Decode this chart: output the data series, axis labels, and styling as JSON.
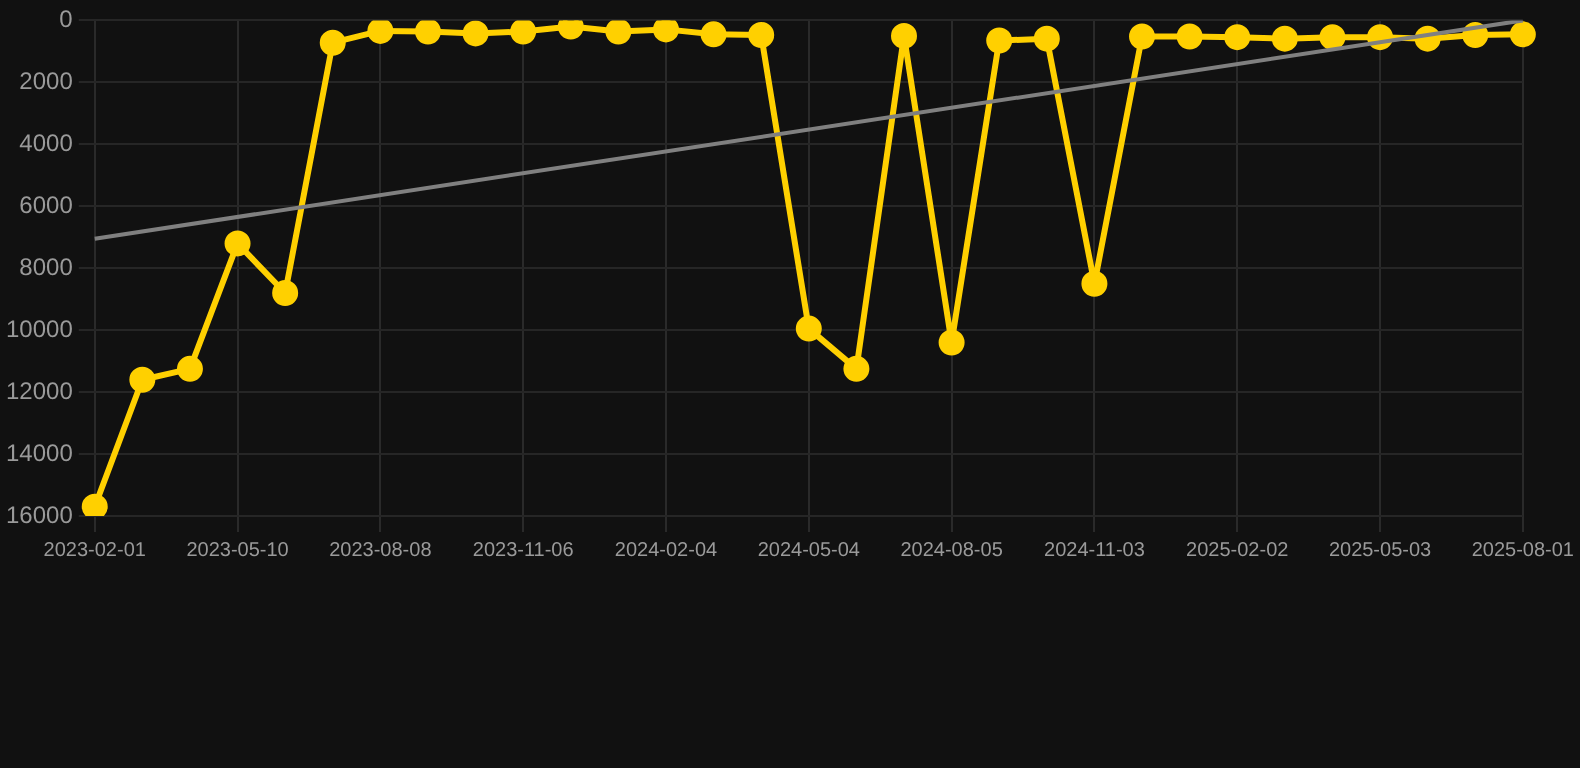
{
  "chart_data": {
    "type": "line",
    "categories": [
      "2023-02-01",
      null,
      null,
      "2023-05-10",
      null,
      null,
      "2023-08-08",
      null,
      null,
      "2023-11-06",
      null,
      null,
      "2024-02-04",
      null,
      null,
      "2024-05-04",
      null,
      null,
      "2024-08-05",
      null,
      null,
      "2024-11-03",
      null,
      null,
      "2025-02-02",
      null,
      null,
      "2025-05-03",
      null,
      null,
      "2025-08-01"
    ],
    "series": [
      {
        "color": "#ffd000",
        "marker": "circle",
        "values": [
          15700,
          11600,
          11250,
          7200,
          8800,
          720,
          340,
          360,
          420,
          360,
          200,
          360,
          290,
          450,
          470,
          9950,
          11250,
          500,
          10400,
          650,
          590,
          8500,
          520,
          520,
          540,
          590,
          540,
          540,
          590,
          470,
          450
        ]
      },
      {
        "type": "line",
        "color": "#808080",
        "marker": "none",
        "values": [
          7050,
          null,
          null,
          null,
          null,
          null,
          null,
          null,
          null,
          null,
          null,
          null,
          null,
          null,
          null,
          null,
          null,
          null,
          null,
          null,
          null,
          null,
          null,
          null,
          null,
          null,
          null,
          null,
          null,
          null,
          0
        ]
      }
    ],
    "ylim": [
      16000,
      0
    ],
    "yticks": [
      0,
      2000,
      4000,
      6000,
      8000,
      10000,
      12000,
      14000,
      16000
    ],
    "grid": true
  }
}
